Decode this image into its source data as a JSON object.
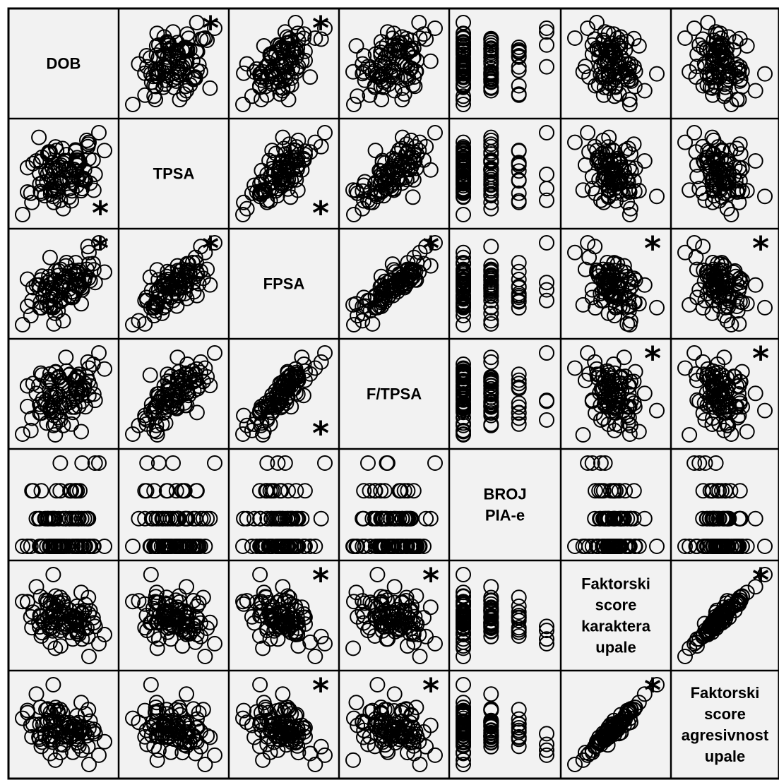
{
  "chart_data": {
    "type": "scatter",
    "variables": [
      {
        "label_lines": [
          "DOB"
        ]
      },
      {
        "label_lines": [
          "TPSA"
        ]
      },
      {
        "label_lines": [
          "FPSA"
        ]
      },
      {
        "label_lines": [
          "F/TPSA"
        ]
      },
      {
        "label_lines": [
          "BROJ",
          "PIA-e"
        ]
      },
      {
        "label_lines": [
          "Faktorski",
          "score",
          "karaktera",
          "upale"
        ]
      },
      {
        "label_lines": [
          "Faktorski",
          "score",
          "agresivnost",
          "upale"
        ]
      }
    ],
    "significance_marker": "*",
    "significant_pairs": [
      [
        0,
        1
      ],
      [
        0,
        2
      ],
      [
        1,
        2
      ],
      [
        2,
        3
      ],
      [
        2,
        5
      ],
      [
        2,
        6
      ],
      [
        3,
        5
      ],
      [
        3,
        6
      ],
      [
        5,
        6
      ]
    ],
    "marker": "open-circle",
    "grid": false,
    "panel_background": "#f2f2f2",
    "marker_color": "#000000"
  }
}
